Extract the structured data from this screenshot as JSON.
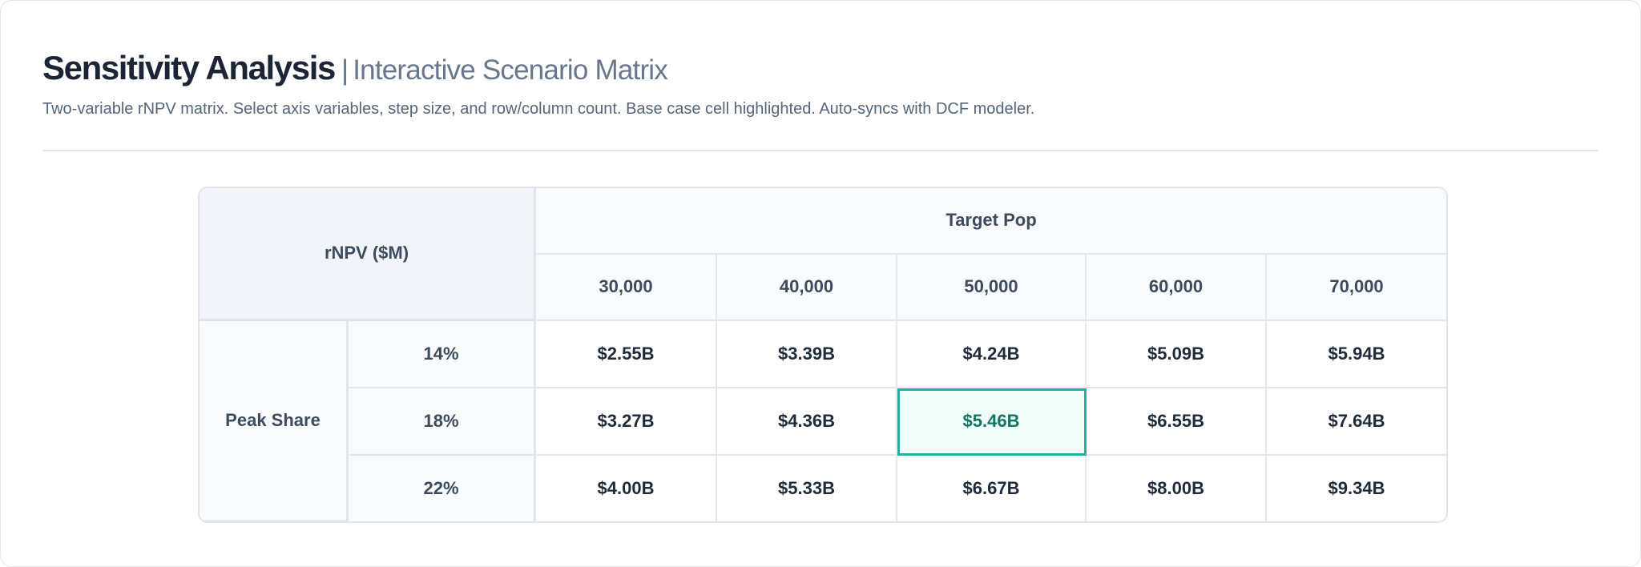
{
  "header": {
    "title": "Sensitivity Analysis",
    "separator": "|",
    "subtitle": "Interactive Scenario Matrix",
    "description": "Two-variable rNPV matrix. Select axis variables, step size, and row/column count. Base case cell highlighted. Auto-syncs with DCF modeler."
  },
  "matrix": {
    "corner_label": "rNPV ($M)",
    "column_variable": "Target Pop",
    "row_variable": "Peak Share",
    "columns": [
      "30,000",
      "40,000",
      "50,000",
      "60,000",
      "70,000"
    ],
    "rows": [
      {
        "label": "14%",
        "values": [
          "$2.55B",
          "$3.39B",
          "$4.24B",
          "$5.09B",
          "$5.94B"
        ]
      },
      {
        "label": "18%",
        "values": [
          "$3.27B",
          "$4.36B",
          "$5.46B",
          "$6.55B",
          "$7.64B"
        ]
      },
      {
        "label": "22%",
        "values": [
          "$4.00B",
          "$5.33B",
          "$6.67B",
          "$8.00B",
          "$9.34B"
        ]
      }
    ],
    "base_case": {
      "row": 1,
      "col": 2
    },
    "colors": {
      "base_case_border": "#1fb39f",
      "base_case_text": "#0f7565",
      "base_case_fill": "#effcf8"
    }
  }
}
